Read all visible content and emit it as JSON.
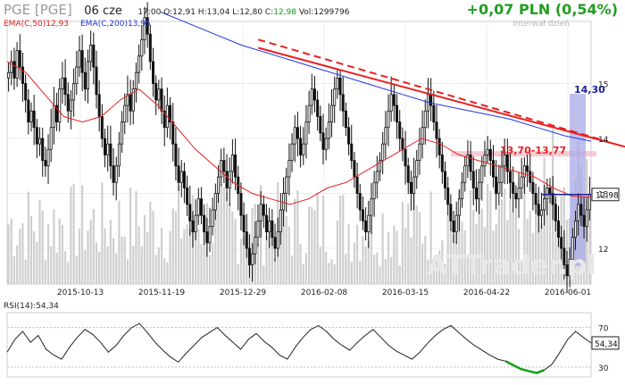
{
  "header": {
    "symbol": "PGE [PGE]",
    "date": "06 cze",
    "ohlc_text": "17:00  O:12,91  H:13,04  L:12,80  C:",
    "close_text": "12,98",
    "volume_text": "  Vol:1299796",
    "change": "+0,07 PLN (0,54%)",
    "interval_label": "Interwał dzień",
    "ema50_label": "EMA(C,50)12,93",
    "ema200_label": "EMA(C,200)13,95",
    "rsi_label": "RSI(14):54,34",
    "watermark": "ATTrader.pl"
  },
  "colors": {
    "candle": "#111111",
    "volume": "#cfcfcf",
    "ema50": "#e82020",
    "ema200": "#2233dd",
    "trendline": "#e82020",
    "rsi_line": "#222222",
    "rsi_highlight": "#11a011",
    "resistance_zone": "#f5b8c4",
    "target_bar": "#a9a9e6",
    "change_up": "#1f9e1f"
  },
  "chart_data": [
    {
      "type": "candlestick",
      "x_tick_labels": [
        "2015-10-13",
        "2015-11-19",
        "2015-12-29",
        "2016-02-08",
        "2016-03-15",
        "2016-04-22",
        "2016-06-01"
      ],
      "y_ticks": [
        12,
        13,
        14,
        15
      ],
      "ylim": [
        11.35,
        16.0
      ],
      "series": [
        {
          "name": "Close",
          "start_date": "2015-09-01",
          "end_date": "2016-06-06",
          "values": [
            15.2,
            15.4,
            15.1,
            15.6,
            15.3,
            15.0,
            14.7,
            14.3,
            14.5,
            14.2,
            13.9,
            14.0,
            13.6,
            13.5,
            13.8,
            14.2,
            14.6,
            14.3,
            14.9,
            15.1,
            14.8,
            14.5,
            14.7,
            15.0,
            15.3,
            15.6,
            15.2,
            14.9,
            15.4,
            15.7,
            15.3,
            14.8,
            14.4,
            14.0,
            13.7,
            13.9,
            13.5,
            13.2,
            13.5,
            13.9,
            14.3,
            14.6,
            14.8,
            14.5,
            14.9,
            15.2,
            15.5,
            15.8,
            16.2,
            15.9,
            15.4,
            15.0,
            14.7,
            14.9,
            14.5,
            14.2,
            14.6,
            14.3,
            13.9,
            13.5,
            13.2,
            13.4,
            13.1,
            12.8,
            12.5,
            12.3,
            12.6,
            12.9,
            12.6,
            12.3,
            12.1,
            12.4,
            12.7,
            13.0,
            13.3,
            13.6,
            13.4,
            13.1,
            13.4,
            13.7,
            13.3,
            13.0,
            12.6,
            12.3,
            12.0,
            11.7,
            11.9,
            12.2,
            12.5,
            12.8,
            12.6,
            12.3,
            12.5,
            12.2,
            12.0,
            12.3,
            12.7,
            13.0,
            13.3,
            13.6,
            13.9,
            14.2,
            14.0,
            13.7,
            13.9,
            14.3,
            14.6,
            14.9,
            14.7,
            14.4,
            14.1,
            13.8,
            14.0,
            14.3,
            14.6,
            14.9,
            15.1,
            14.8,
            14.5,
            14.2,
            13.9,
            13.6,
            13.3,
            13.0,
            12.7,
            12.5,
            12.3,
            12.6,
            12.9,
            13.2,
            13.4,
            13.6,
            13.9,
            14.2,
            14.5,
            14.8,
            14.6,
            14.3,
            14.0,
            13.8,
            13.5,
            13.2,
            13.0,
            13.3,
            13.6,
            13.9,
            14.2,
            14.5,
            14.8,
            14.6,
            14.3,
            14.0,
            13.7,
            13.4,
            13.1,
            12.8,
            12.5,
            12.3,
            12.6,
            12.9,
            13.2,
            13.5,
            13.7,
            13.4,
            13.1,
            12.9,
            13.2,
            13.5,
            13.7,
            13.8,
            13.6,
            13.3,
            13.0,
            13.2,
            13.5,
            13.7,
            13.4,
            13.2,
            13.0,
            12.9,
            13.1,
            13.3,
            13.5,
            13.4,
            13.2,
            13.0,
            12.8,
            12.6,
            12.7,
            12.9,
            13.1,
            13.0,
            12.8,
            12.5,
            12.2,
            12.0,
            11.7,
            11.5,
            11.8,
            12.2,
            12.5,
            12.8,
            12.6,
            12.4,
            12.7,
            12.98
          ]
        },
        {
          "name": "EMA(C,50)",
          "values": [
            15.4,
            15.2,
            14.8,
            14.4,
            14.3,
            14.4,
            14.7,
            14.9,
            14.6,
            14.2,
            13.8,
            13.5,
            13.2,
            13.0,
            12.9,
            12.8,
            12.9,
            13.1,
            13.2,
            13.4,
            13.6,
            13.8,
            14.0,
            13.9,
            13.7,
            13.6,
            13.5,
            13.4,
            13.3,
            13.1,
            12.95,
            12.93
          ]
        },
        {
          "name": "EMA(C,200)",
          "values": [
            16.3,
            16.1,
            15.9,
            15.7,
            15.55,
            15.4,
            15.25,
            15.1,
            14.95,
            14.8,
            14.65,
            14.55,
            14.45,
            14.35,
            14.2,
            14.05,
            13.95
          ]
        }
      ],
      "trend_lines": [
        {
          "name": "solid-resistance",
          "from": [
            0.43,
            15.65
          ],
          "to": [
            1.0,
            13.85
          ]
        },
        {
          "name": "dashed-resistance",
          "from": [
            0.43,
            15.8
          ],
          "to": [
            0.97,
            13.95
          ]
        }
      ],
      "annotations": {
        "resistance_zone": "13,70-13,77",
        "target": "14,30",
        "last_price_label": "12,98"
      }
    },
    {
      "type": "line",
      "title": "RSI(14)",
      "y_ticks": [
        30,
        70
      ],
      "ylim": [
        20,
        85
      ],
      "series": [
        {
          "name": "RSI(14)",
          "values": [
            45,
            58,
            66,
            55,
            62,
            48,
            42,
            38,
            50,
            60,
            68,
            63,
            55,
            45,
            52,
            62,
            70,
            74,
            65,
            55,
            47,
            40,
            35,
            44,
            52,
            60,
            65,
            70,
            62,
            55,
            48,
            58,
            64,
            56,
            50,
            42,
            38,
            50,
            60,
            68,
            72,
            66,
            58,
            52,
            47,
            55,
            62,
            68,
            60,
            52,
            46,
            42,
            38,
            45,
            54,
            62,
            68,
            72,
            65,
            58,
            52,
            47,
            42,
            38,
            36,
            32,
            28,
            26,
            24,
            27,
            33,
            45,
            58,
            66,
            60,
            54.34
          ]
        }
      ],
      "highlight": {
        "from_index": 64,
        "to_index": 69
      }
    }
  ]
}
